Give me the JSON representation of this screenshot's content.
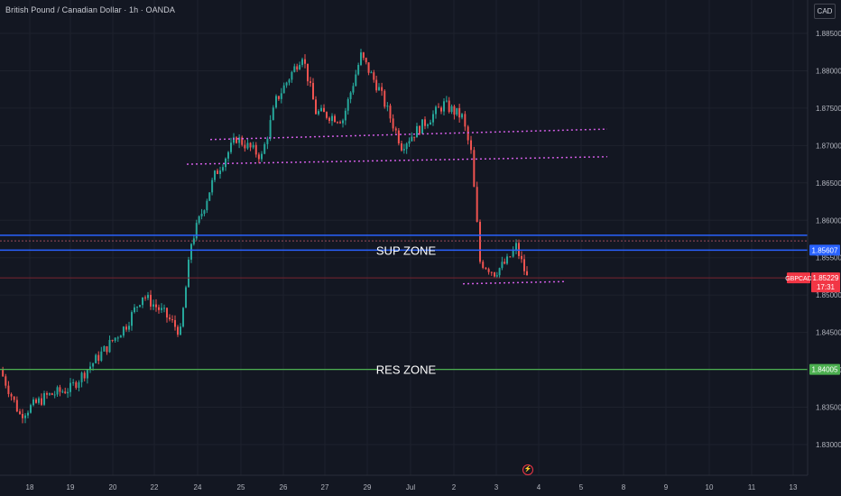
{
  "header": {
    "title": "British Pound / Canadian Dollar · 1h · OANDA",
    "currency_button": "CAD"
  },
  "colors": {
    "background": "#131722",
    "grid": "#1e222d",
    "bull": "#26a69a",
    "bear": "#ef5350",
    "support_zone": "#2962ff",
    "resistance_line": "#4caf50",
    "trendline": "#d05ce3",
    "price_line": "#f23645"
  },
  "chart_data": {
    "type": "candlestick",
    "symbol": "GBPCAD",
    "timeframe": "1h",
    "grid": true,
    "y_axis": {
      "ticks": [
        "1.88500",
        "1.88000",
        "1.87500",
        "1.87000",
        "1.86500",
        "1.86000",
        "1.85500",
        "1.85000",
        "1.84500",
        "1.84000",
        "1.83500",
        "1.83000"
      ],
      "range": [
        1.8275,
        1.889
      ]
    },
    "x_axis": {
      "ticks": [
        "18",
        "19",
        "20",
        "22",
        "24",
        "25",
        "26",
        "27",
        "29",
        "Jul",
        "2",
        "3",
        "4",
        "5",
        "8",
        "9",
        "10",
        "11",
        "13"
      ]
    },
    "price_path": [
      [
        "18",
        1.84
      ],
      [
        "18",
        1.834
      ],
      [
        "19",
        1.8365
      ],
      [
        "19",
        1.8375
      ],
      [
        "20",
        1.8405
      ],
      [
        "20",
        1.846
      ],
      [
        "20",
        1.85
      ],
      [
        "22",
        1.8475
      ],
      [
        "22",
        1.845
      ],
      [
        "24",
        1.857
      ],
      [
        "24",
        1.866
      ],
      [
        "25",
        1.871
      ],
      [
        "25",
        1.8685
      ],
      [
        "26",
        1.876
      ],
      [
        "26",
        1.8822
      ],
      [
        "27",
        1.8745
      ],
      [
        "27",
        1.8735
      ],
      [
        "29",
        1.882
      ],
      [
        "29",
        1.8775
      ],
      [
        "Jul",
        1.87
      ],
      [
        "Jul",
        1.872
      ],
      [
        "2",
        1.8755
      ],
      [
        "2",
        1.8738
      ],
      [
        "2",
        1.869
      ],
      [
        "3",
        1.8545
      ],
      [
        "3",
        1.853
      ],
      [
        "3",
        1.8545
      ],
      [
        "4",
        1.8565
      ],
      [
        "4",
        1.8523
      ]
    ],
    "annotations": [
      {
        "label": "SUP ZONE",
        "type": "zone",
        "range": [
          1.856,
          1.858
        ],
        "price_label": "1.85607"
      },
      {
        "label": "RES ZONE",
        "type": "level",
        "value": 1.84005,
        "price_label": "1.84005"
      },
      {
        "label": "",
        "type": "trendline",
        "from": [
          "23",
          1.8708
        ],
        "to": [
          "7",
          1.8722
        ]
      },
      {
        "label": "",
        "type": "trendline",
        "from": [
          "23",
          1.8675
        ],
        "to": [
          "7",
          1.8685
        ]
      },
      {
        "label": "",
        "type": "trendline",
        "from": [
          "3",
          1.8515
        ],
        "to": [
          "5",
          1.8518
        ]
      }
    ],
    "last_price": {
      "symbol": "GBPCAD",
      "value": "1.85229",
      "countdown": "17:31"
    }
  }
}
